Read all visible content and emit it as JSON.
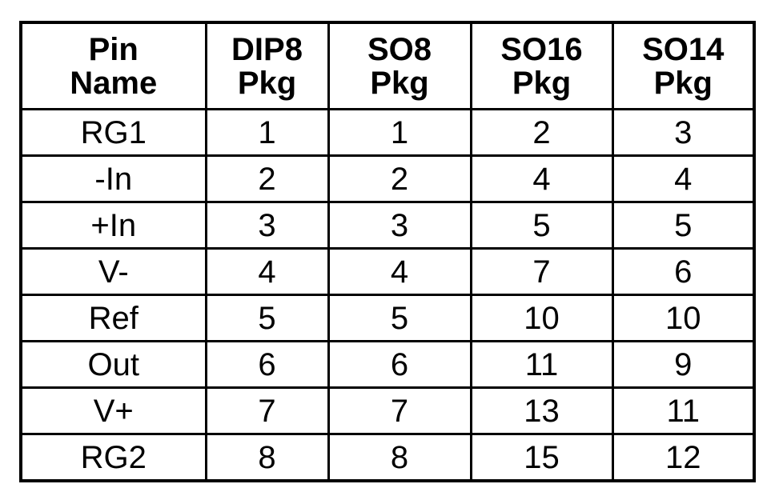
{
  "table": {
    "headers": [
      [
        "Pin",
        "Name"
      ],
      [
        "DIP8",
        "Pkg"
      ],
      [
        "SO8",
        "Pkg"
      ],
      [
        "SO16",
        "Pkg"
      ],
      [
        "SO14",
        "Pkg"
      ]
    ],
    "rows": [
      [
        "RG1",
        "1",
        "1",
        "2",
        "3"
      ],
      [
        "-In",
        "2",
        "2",
        "4",
        "4"
      ],
      [
        "+In",
        "3",
        "3",
        "5",
        "5"
      ],
      [
        "V-",
        "4",
        "4",
        "7",
        "6"
      ],
      [
        "Ref",
        "5",
        "5",
        "10",
        "10"
      ],
      [
        "Out",
        "6",
        "6",
        "11",
        "9"
      ],
      [
        "V+",
        "7",
        "7",
        "13",
        "11"
      ],
      [
        "RG2",
        "8",
        "8",
        "15",
        "12"
      ]
    ]
  }
}
